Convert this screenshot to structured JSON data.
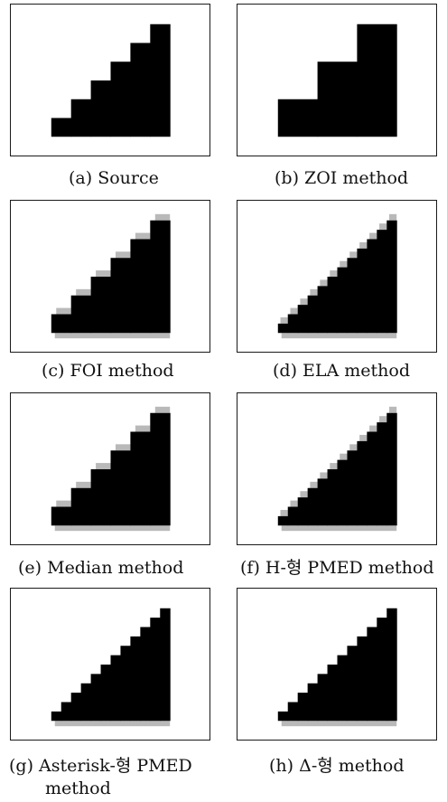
{
  "colors": {
    "stair": "#000000",
    "artifact": "#b9b9b9",
    "border": "#1a1a1a"
  },
  "panels": [
    {
      "id": "a",
      "caption": "(a) Source",
      "caption_line2": "",
      "steps": 6,
      "artifacts": false,
      "bottom_artifacts": false
    },
    {
      "id": "b",
      "caption": "(b) ZOI method",
      "caption_line2": "",
      "steps": 3,
      "artifacts": false,
      "bottom_artifacts": false
    },
    {
      "id": "c",
      "caption": "(c) FOI method",
      "caption_line2": "",
      "steps": 6,
      "artifacts": true,
      "bottom_artifacts": true
    },
    {
      "id": "d",
      "caption": "(d) ELA method",
      "caption_line2": "",
      "steps": 12,
      "artifacts": true,
      "bottom_artifacts": true
    },
    {
      "id": "e",
      "caption": "(e) Median method",
      "caption_line2": "",
      "steps": 6,
      "artifacts": true,
      "bottom_artifacts": true
    },
    {
      "id": "f",
      "caption": "(f) H-형 PMED method",
      "caption_line2": "",
      "steps": 12,
      "artifacts": true,
      "bottom_artifacts": true
    },
    {
      "id": "g",
      "caption": "(g) Asterisk-형 PMED",
      "caption_line2": "method",
      "steps": 12,
      "artifacts": false,
      "bottom_artifacts": true
    },
    {
      "id": "h",
      "caption": "(h) Δ-형 method",
      "caption_line2": "",
      "steps": 12,
      "artifacts": false,
      "bottom_artifacts": true
    }
  ]
}
